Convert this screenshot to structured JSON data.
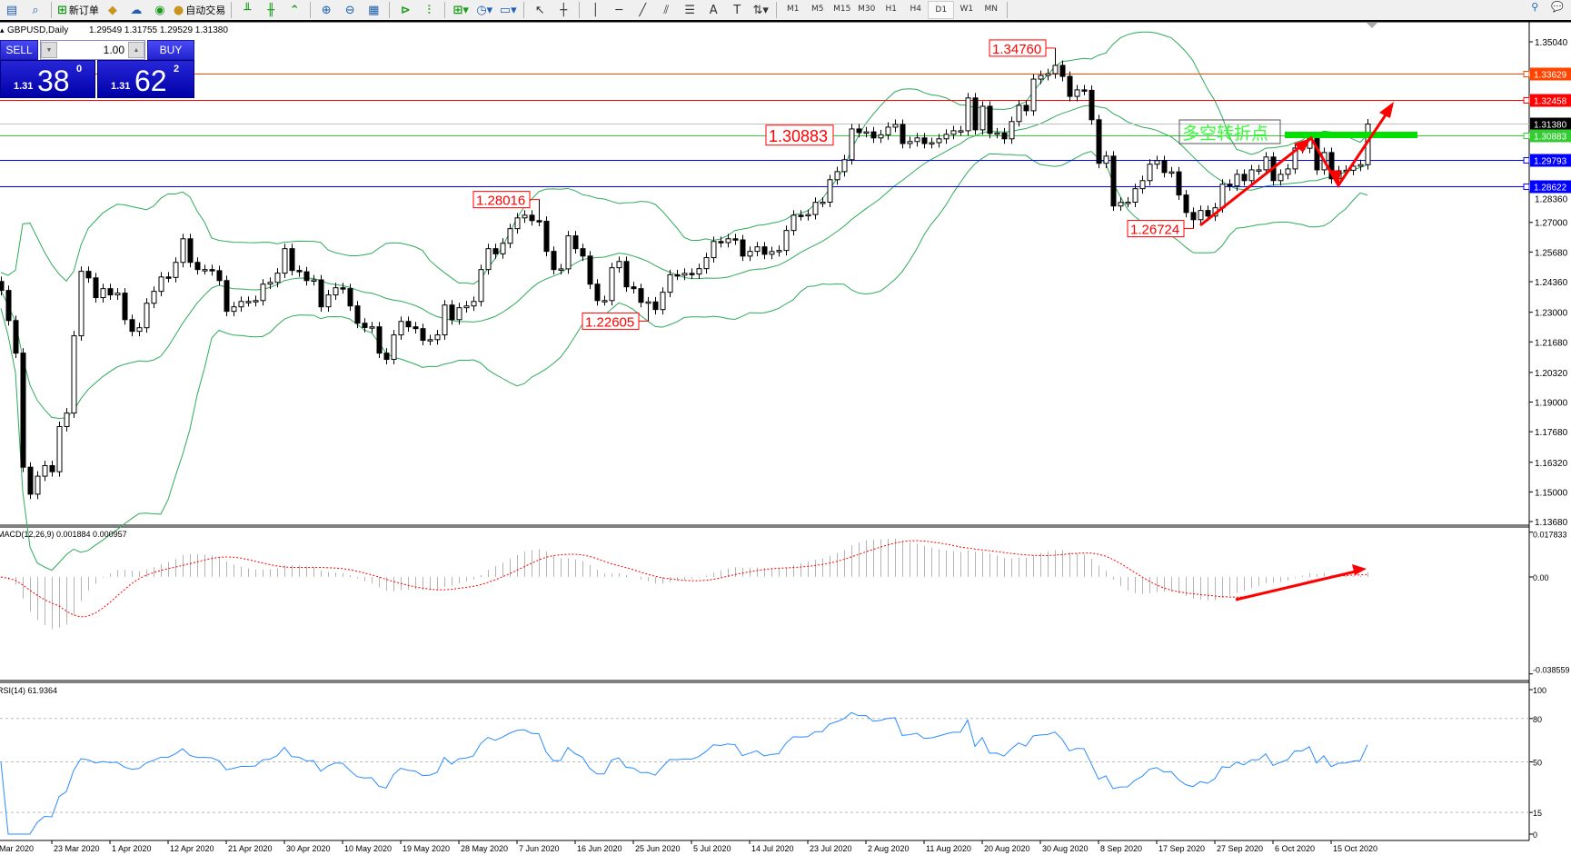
{
  "toolbar": {
    "new_order_label": "新订单",
    "auto_trading_label": "自动交易",
    "timeframes": [
      "M1",
      "M5",
      "M15",
      "M30",
      "H1",
      "H4",
      "D1",
      "W1",
      "MN"
    ],
    "active_timeframe": "D1"
  },
  "chart_header": {
    "symbol": "GBPUSD,Daily",
    "ohlc": "1.29549 1.31755 1.29529 1.31380"
  },
  "trade_panel": {
    "sell_label": "SELL",
    "buy_label": "BUY",
    "lot": "1.00",
    "sell_price": {
      "prefix": "1.31",
      "big": "38",
      "sup": "0"
    },
    "buy_price": {
      "prefix": "1.31",
      "big": "62",
      "sup": "2"
    }
  },
  "colors": {
    "bollinger": "#2eaa5c",
    "macd_histogram": "#b4b4b4",
    "macd_signal": "#ff0000",
    "rsi": "#2a8cff",
    "annotation": "#ff0000",
    "pivot_text": "#33ff33"
  },
  "chart_data": [
    {
      "type": "candlestick",
      "title": "GBPUSD,Daily",
      "indicators": [
        "Bollinger Bands (20,2)"
      ],
      "ylim": [
        1.1368,
        1.3504
      ],
      "y_ticks": [
        "1.35040",
        "1.28360",
        "1.27000",
        "1.25680",
        "1.24360",
        "1.23000",
        "1.21680",
        "1.20320",
        "1.19000",
        "1.17680",
        "1.16320",
        "1.15000",
        "1.13680"
      ],
      "x_tick_labels": [
        "Mar 2020",
        "23 Mar 2020",
        "1 Apr 2020",
        "12 Apr 2020",
        "21 Apr 2020",
        "30 Apr 2020",
        "10 May 2020",
        "19 May 2020",
        "28 May 2020",
        "7 Jun 2020",
        "16 Jun 2020",
        "25 Jun 2020",
        "5 Jul 2020",
        "14 Jul 2020",
        "23 Jul 2020",
        "2 Aug 2020",
        "11 Aug 2020",
        "20 Aug 2020",
        "30 Aug 2020",
        "8 Sep 2020",
        "17 Sep 2020",
        "27 Sep 2020",
        "6 Oct 2020",
        "15 Oct 2020"
      ],
      "closes": [
        1.2397,
        1.2263,
        1.2118,
        1.161,
        1.149,
        1.157,
        1.1617,
        1.159,
        1.1791,
        1.1851,
        1.2195,
        1.2482,
        1.2453,
        1.2365,
        1.2405,
        1.2377,
        1.2385,
        1.2267,
        1.2215,
        1.2231,
        1.234,
        1.2393,
        1.2457,
        1.2455,
        1.2522,
        1.2627,
        1.2522,
        1.249,
        1.249,
        1.2485,
        1.2441,
        1.2304,
        1.2324,
        1.2348,
        1.2348,
        1.2352,
        1.2425,
        1.2433,
        1.2474,
        1.2583,
        1.2486,
        1.248,
        1.2441,
        1.2444,
        1.2324,
        1.2377,
        1.2409,
        1.2405,
        1.2328,
        1.2251,
        1.2232,
        1.2235,
        1.2118,
        1.209,
        1.2199,
        1.2259,
        1.2235,
        1.2227,
        1.2175,
        1.2178,
        1.2199,
        1.2332,
        1.2267,
        1.232,
        1.2328,
        1.2348,
        1.249,
        1.2583,
        1.256,
        1.2607,
        1.2672,
        1.272,
        1.2732,
        1.2708,
        1.2705,
        1.2571,
        1.249,
        1.2493,
        1.264,
        1.2583,
        1.255,
        1.2425,
        1.2352,
        1.2352,
        1.2498,
        1.2526,
        1.2413,
        1.2405,
        1.2344,
        1.2346,
        1.2312,
        1.2389,
        1.2467,
        1.2465,
        1.2473,
        1.247,
        1.2494,
        1.2543,
        1.2615,
        1.261,
        1.2627,
        1.2622,
        1.255,
        1.2571,
        1.2591,
        1.2558,
        1.257,
        1.2575,
        1.2664,
        1.2732,
        1.273,
        1.2735,
        1.2789,
        1.279,
        1.289,
        1.2926,
        1.2979,
        1.3116,
        1.31,
        1.3103,
        1.3076,
        1.309,
        1.3124,
        1.3136,
        1.3051,
        1.306,
        1.3076,
        1.3051,
        1.3055,
        1.3072,
        1.3092,
        1.3108,
        1.3108,
        1.3254,
        1.3112,
        1.3217,
        1.3096,
        1.3098,
        1.3072,
        1.3149,
        1.3221,
        1.3197,
        1.3338,
        1.3354,
        1.3362,
        1.3399,
        1.335,
        1.3261,
        1.329,
        1.3288,
        1.3157,
        1.2963,
        1.2995,
        1.2773,
        1.2789,
        1.279,
        1.285,
        1.2886,
        1.2959,
        1.2975,
        1.2922,
        1.2925,
        1.2822,
        1.2744,
        1.2712,
        1.2753,
        1.2728,
        1.2765,
        1.287,
        1.2862,
        1.2914,
        1.2886,
        1.2934,
        1.2934,
        1.2991,
        1.2886,
        1.2914,
        1.2938,
        1.3031,
        1.303,
        1.3076,
        1.2934,
        1.3011,
        1.2894,
        1.293,
        1.2932,
        1.295,
        1.2957,
        1.3138
      ],
      "extreme_labels": [
        {
          "price": "1.28016",
          "bar": 74,
          "kind": "high"
        },
        {
          "price": "1.22605",
          "bar": 89,
          "kind": "low"
        },
        {
          "price": "1.34760",
          "bar": 145,
          "kind": "high"
        },
        {
          "price": "1.26724",
          "bar": 164,
          "kind": "low"
        }
      ],
      "horizontal_lines": [
        {
          "price": "1.33629",
          "color": "#ff4500"
        },
        {
          "price": "1.32458",
          "color": "#ff0000"
        },
        {
          "price": "1.31380",
          "color": "#000000",
          "line_color": "#c0c0c0"
        },
        {
          "price": "1.30883",
          "color": "#33cc33"
        },
        {
          "price": "1.29793",
          "color": "#0000ff"
        },
        {
          "price": "1.28622",
          "color": "#0000ff"
        }
      ],
      "level_label": "1.30883",
      "pivot_text": "多空转折点"
    },
    {
      "type": "bar",
      "title": "MACD(12,26,9) 0.001884 0.000957",
      "ylim": [
        -0.038559,
        0.017833
      ],
      "y_ticks": [
        "0.017833",
        "0.00",
        "-0.038559"
      ]
    },
    {
      "type": "line",
      "title": "RSI(14) 61.9364",
      "ylim": [
        0,
        100
      ],
      "y_ticks": [
        "100",
        "80",
        "50",
        "15",
        "0"
      ],
      "levels": [
        80,
        50,
        15
      ]
    }
  ]
}
